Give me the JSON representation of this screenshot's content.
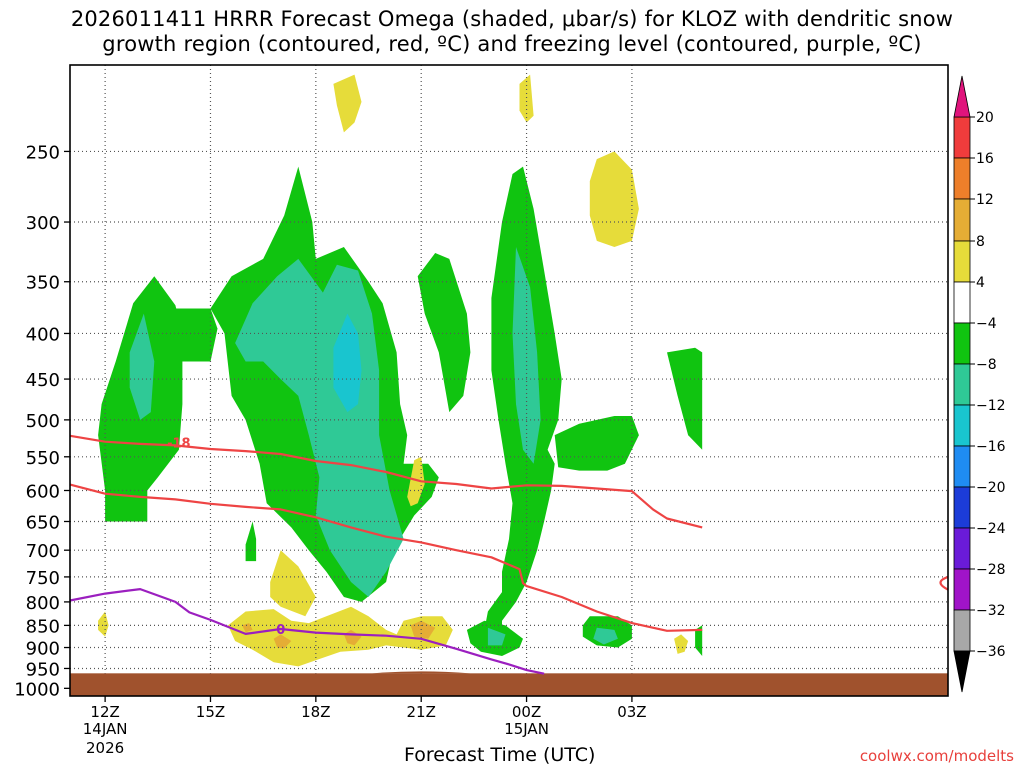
{
  "title_line1": "2026011411 HRRR Forecast Omega (shaded, μbar/s) for KLOZ with dendritic snow",
  "title_line2": "growth region (contoured, red, ºC) and freezing level (contoured, purple, ºC)",
  "credit": "coolwx.com/modelts",
  "chart_data": {
    "type": "heatmap",
    "title": "2026011411 HRRR Forecast Omega (shaded, μbar/s) for KLOZ with dendritic snow growth region (contoured, red, ºC) and freezing level (contoured, purple, ºC)",
    "xlabel": "Forecast Time (UTC)",
    "ylabel": "",
    "x_range_hours": [
      -1,
      24
    ],
    "x_ticks": [
      {
        "hour": 0,
        "label": "12Z",
        "sub1": "14JAN",
        "sub2": "2026"
      },
      {
        "hour": 3,
        "label": "15Z"
      },
      {
        "hour": 6,
        "label": "18Z"
      },
      {
        "hour": 9,
        "label": "21Z"
      },
      {
        "hour": 12,
        "label": "00Z",
        "sub1": "15JAN"
      },
      {
        "hour": 15,
        "label": "03Z"
      }
    ],
    "y_ticks_hpa": [
      250,
      300,
      350,
      400,
      450,
      500,
      550,
      600,
      650,
      700,
      750,
      800,
      850,
      900,
      950,
      1000
    ],
    "y_range_hpa": [
      200,
      1020
    ],
    "grid": true,
    "surface_pressure_hpa": 962,
    "colorbar": {
      "labels": [
        "20",
        "16",
        "12",
        "8",
        "4",
        "−4",
        "−8",
        "−12",
        "−16",
        "−20",
        "−24",
        "−28",
        "−32",
        "−36"
      ],
      "bands": [
        {
          "lo": 16,
          "hi": 20,
          "color": "#f03c3c"
        },
        {
          "lo": 12,
          "hi": 16,
          "color": "#ee7f2a"
        },
        {
          "lo": 8,
          "hi": 12,
          "color": "#e5ad35"
        },
        {
          "lo": 4,
          "hi": 8,
          "color": "#e6dc3a"
        },
        {
          "lo": -4,
          "hi": 4,
          "color": "#ffffff"
        },
        {
          "lo": -8,
          "hi": -4,
          "color": "#10c410"
        },
        {
          "lo": -12,
          "hi": -8,
          "color": "#2fc996"
        },
        {
          "lo": -16,
          "hi": -12,
          "color": "#19c5cf"
        },
        {
          "lo": -20,
          "hi": -16,
          "color": "#1f8cf2"
        },
        {
          "lo": -24,
          "hi": -20,
          "color": "#1c3cd8"
        },
        {
          "lo": -28,
          "hi": -24,
          "color": "#6a1bd9"
        },
        {
          "lo": -32,
          "hi": -28,
          "color": "#a014c8"
        },
        {
          "lo": -36,
          "hi": -32,
          "color": "#a8a8a8"
        }
      ],
      "top_arrow_color": "#e0147c",
      "bottom_arrow_color": "#000000"
    },
    "contours": {
      "minus18_upper": {
        "color": "#ee4444",
        "label": "-18",
        "points": [
          [
            -1,
            521
          ],
          [
            0,
            529
          ],
          [
            1,
            532
          ],
          [
            2,
            534
          ],
          [
            3,
            539
          ],
          [
            4,
            542
          ],
          [
            5,
            546
          ],
          [
            6,
            556
          ],
          [
            7,
            562
          ],
          [
            8,
            572
          ],
          [
            9,
            586
          ],
          [
            10,
            590
          ],
          [
            11,
            597
          ],
          [
            12,
            592
          ],
          [
            13,
            593
          ],
          [
            14,
            597
          ],
          [
            15,
            601
          ],
          [
            15.6,
            630
          ],
          [
            16,
            645
          ],
          [
            17,
            660
          ]
        ]
      },
      "minus12_lower": {
        "color": "#ee4444",
        "label": "",
        "points": [
          [
            -1,
            591
          ],
          [
            0,
            605
          ],
          [
            1,
            610
          ],
          [
            2,
            614
          ],
          [
            3,
            621
          ],
          [
            4,
            626
          ],
          [
            5,
            630
          ],
          [
            6,
            643
          ],
          [
            7,
            660
          ],
          [
            8,
            676
          ],
          [
            9,
            686
          ],
          [
            10,
            700
          ],
          [
            11,
            713
          ],
          [
            11.8,
            735
          ],
          [
            11.9,
            762
          ],
          [
            12,
            768
          ],
          [
            13,
            790
          ],
          [
            14,
            820
          ],
          [
            15,
            845
          ],
          [
            16,
            862
          ],
          [
            17,
            860
          ]
        ]
      },
      "freezing_level": {
        "color": "#9b1fbf",
        "label": "0",
        "points": [
          [
            -1,
            797
          ],
          [
            0,
            783
          ],
          [
            1,
            774
          ],
          [
            1.7,
            792
          ],
          [
            2,
            800
          ],
          [
            2.4,
            822
          ],
          [
            3,
            838
          ],
          [
            4,
            869
          ],
          [
            5,
            858
          ],
          [
            6,
            866
          ],
          [
            7,
            870
          ],
          [
            8,
            873
          ],
          [
            9,
            880
          ],
          [
            10,
            903
          ],
          [
            11,
            928
          ],
          [
            11.5,
            940
          ],
          [
            12,
            954
          ],
          [
            12.5,
            963
          ]
        ]
      }
    },
    "shaded_areas": [
      {
        "name": "upper-left-green",
        "value_range": [
          -8,
          -4
        ],
        "color": "#10c410"
      },
      {
        "name": "main-green-mass",
        "value_range": [
          -8,
          -4
        ],
        "color": "#10c410"
      },
      {
        "name": "teal-cores",
        "value_range": [
          -12,
          -8
        ],
        "color": "#2fc996"
      },
      {
        "name": "cyan-core",
        "value_range": [
          -16,
          -12
        ],
        "color": "#19c5cf"
      },
      {
        "name": "yellow-rising-low-level",
        "value_range": [
          4,
          8
        ],
        "color": "#e6dc3a"
      },
      {
        "name": "orange-centers",
        "value_range": [
          8,
          12
        ],
        "color": "#e5ad35"
      }
    ]
  }
}
